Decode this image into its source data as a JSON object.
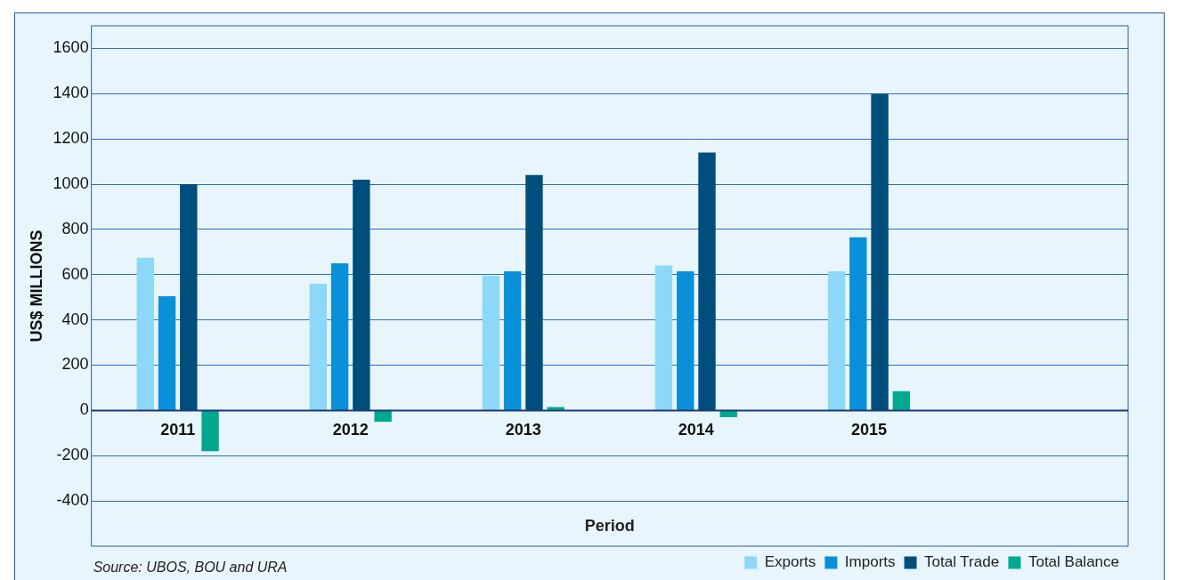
{
  "chart_data": {
    "type": "bar",
    "xlabel": "Period",
    "ylabel": "US$ MILLIONS",
    "categories": [
      "2011",
      "2012",
      "2013",
      "2014",
      "2015",
      null
    ],
    "series": [
      {
        "name": "Exports",
        "color": "#8dd8f8",
        "values": [
          675,
          560,
          595,
          640,
          615,
          null
        ]
      },
      {
        "name": "Imports",
        "color": "#0a90d8",
        "values": [
          505,
          650,
          615,
          615,
          765,
          null
        ]
      },
      {
        "name": "Total Trade",
        "color": "#004e7c",
        "values": [
          1000,
          1020,
          1040,
          1140,
          1400,
          null
        ]
      },
      {
        "name": "Total Balance",
        "color": "#00a88f",
        "values": [
          -180,
          -50,
          15,
          -30,
          85,
          null
        ]
      }
    ],
    "ylim": [
      -600,
      1700
    ],
    "yticks": [
      -400,
      -200,
      0,
      200,
      400,
      600,
      800,
      1000,
      1200,
      1400,
      1600
    ],
    "grid": "y",
    "legend": "bottom right",
    "annotations": [
      "Source: UBOS, BOU and URA"
    ]
  }
}
